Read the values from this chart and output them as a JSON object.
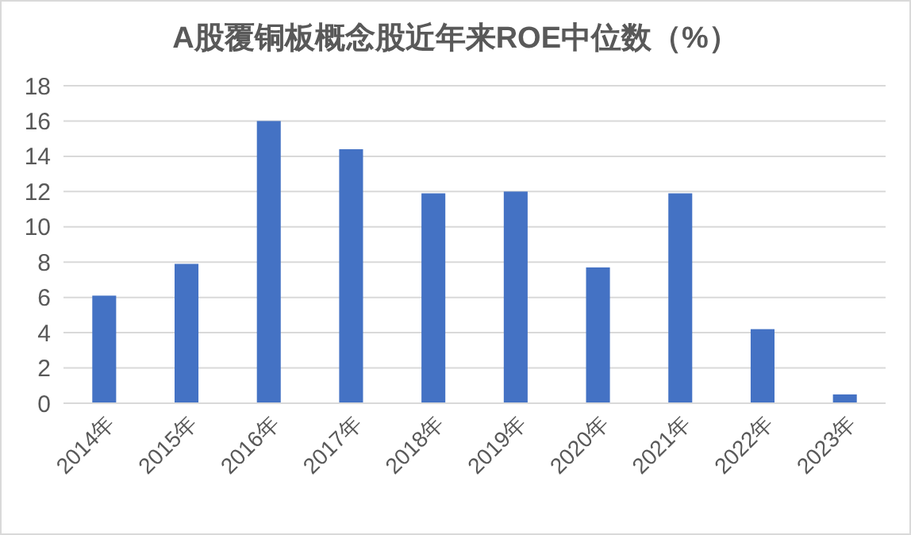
{
  "chart_data": {
    "type": "bar",
    "title": "A股覆铜板概念股近年来ROE中位数（%）",
    "categories": [
      "2014年",
      "2015年",
      "2016年",
      "2017年",
      "2018年",
      "2019年",
      "2020年",
      "2021年",
      "2022年",
      "2023年"
    ],
    "values": [
      6.1,
      7.9,
      16.0,
      14.4,
      11.9,
      12.0,
      7.7,
      11.9,
      4.2,
      0.5
    ],
    "color": "#4472c4",
    "ylim": [
      0,
      18
    ],
    "yticks": [
      0,
      2,
      4,
      6,
      8,
      10,
      12,
      14,
      16,
      18
    ],
    "grid": "y"
  }
}
